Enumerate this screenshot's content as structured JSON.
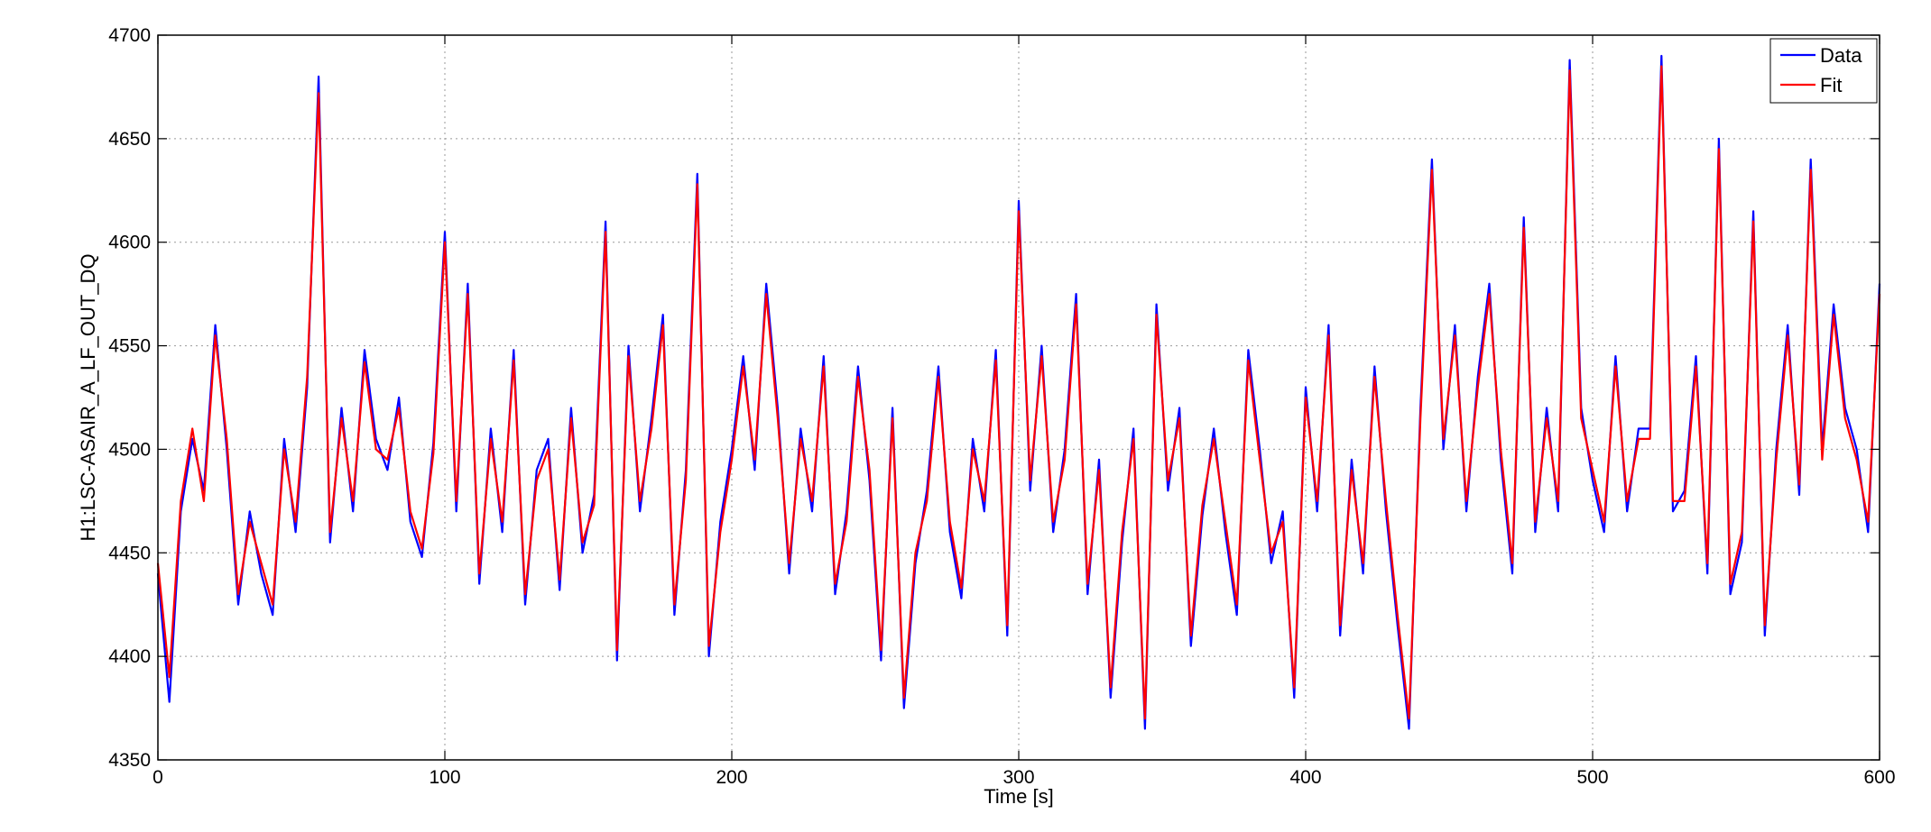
{
  "chart_data": {
    "type": "line",
    "title": "",
    "xlabel": "Time [s]",
    "ylabel": "H1:LSC-ASAIR_A_LF_OUT_DQ",
    "xlim": [
      0,
      600
    ],
    "ylim": [
      4350,
      4700
    ],
    "x_ticks": [
      0,
      100,
      200,
      300,
      400,
      500,
      600
    ],
    "y_ticks": [
      4350,
      4400,
      4450,
      4500,
      4550,
      4600,
      4650,
      4700
    ],
    "grid": true,
    "legend_position": "top-right",
    "sample_interval_s": 4,
    "series": [
      {
        "name": "Data",
        "color": "#0000ff",
        "x": [
          0,
          4,
          8,
          12,
          16,
          20,
          24,
          28,
          32,
          36,
          40,
          44,
          48,
          52,
          56,
          60,
          64,
          68,
          72,
          76,
          80,
          84,
          88,
          92,
          96,
          100,
          104,
          108,
          112,
          116,
          120,
          124,
          128,
          132,
          136,
          140,
          144,
          148,
          152,
          156,
          160,
          164,
          168,
          172,
          176,
          180,
          184,
          188,
          192,
          196,
          200,
          204,
          208,
          212,
          216,
          220,
          224,
          228,
          232,
          236,
          240,
          244,
          248,
          252,
          256,
          260,
          264,
          268,
          272,
          276,
          280,
          284,
          288,
          292,
          296,
          300,
          304,
          308,
          312,
          316,
          320,
          324,
          328,
          332,
          336,
          340,
          344,
          348,
          352,
          356,
          360,
          364,
          368,
          372,
          376,
          380,
          384,
          388,
          392,
          396,
          400,
          404,
          408,
          412,
          416,
          420,
          424,
          428,
          432,
          436,
          440,
          444,
          448,
          452,
          456,
          460,
          464,
          468,
          472,
          476,
          480,
          484,
          488,
          492,
          496,
          500,
          504,
          508,
          512,
          516,
          520,
          524,
          528,
          532,
          536,
          540,
          544,
          548,
          552,
          556,
          560,
          564,
          568,
          572,
          576,
          580,
          584,
          588,
          592,
          596,
          600
        ],
        "values": [
          4440,
          4378,
          4470,
          4505,
          4480,
          4560,
          4500,
          4425,
          4470,
          4440,
          4420,
          4505,
          4460,
          4530,
          4680,
          4455,
          4520,
          4470,
          4548,
          4505,
          4490,
          4525,
          4465,
          4448,
          4503,
          4605,
          4470,
          4580,
          4435,
          4510,
          4460,
          4548,
          4425,
          4490,
          4505,
          4432,
          4520,
          4450,
          4478,
          4610,
          4398,
          4550,
          4470,
          4515,
          4565,
          4420,
          4490,
          4633,
          4400,
          4465,
          4500,
          4545,
          4490,
          4580,
          4520,
          4440,
          4510,
          4470,
          4545,
          4430,
          4470,
          4540,
          4485,
          4398,
          4520,
          4375,
          4445,
          4480,
          4540,
          4460,
          4428,
          4505,
          4470,
          4548,
          4410,
          4620,
          4480,
          4550,
          4460,
          4500,
          4575,
          4430,
          4495,
          4380,
          4455,
          4510,
          4365,
          4570,
          4480,
          4520,
          4405,
          4468,
          4510,
          4460,
          4420,
          4548,
          4500,
          4445,
          4470,
          4380,
          4530,
          4470,
          4560,
          4410,
          4495,
          4440,
          4540,
          4470,
          4415,
          4365,
          4520,
          4640,
          4500,
          4560,
          4470,
          4535,
          4580,
          4495,
          4440,
          4612,
          4460,
          4520,
          4470,
          4688,
          4520,
          4485,
          4460,
          4545,
          4470,
          4510,
          4510,
          4690,
          4470,
          4480,
          4545,
          4440,
          4650,
          4430,
          4455,
          4615,
          4410,
          4500,
          4560,
          4478,
          4640,
          4500,
          4570,
          4520,
          4500,
          4460,
          4580
        ]
      },
      {
        "name": "Fit",
        "color": "#ff0000",
        "x": [
          0,
          4,
          8,
          12,
          16,
          20,
          24,
          28,
          32,
          36,
          40,
          44,
          48,
          52,
          56,
          60,
          64,
          68,
          72,
          76,
          80,
          84,
          88,
          92,
          96,
          100,
          104,
          108,
          112,
          116,
          120,
          124,
          128,
          132,
          136,
          140,
          144,
          148,
          152,
          156,
          160,
          164,
          168,
          172,
          176,
          180,
          184,
          188,
          192,
          196,
          200,
          204,
          208,
          212,
          216,
          220,
          224,
          228,
          232,
          236,
          240,
          244,
          248,
          252,
          256,
          260,
          264,
          268,
          272,
          276,
          280,
          284,
          288,
          292,
          296,
          300,
          304,
          308,
          312,
          316,
          320,
          324,
          328,
          332,
          336,
          340,
          344,
          348,
          352,
          356,
          360,
          364,
          368,
          372,
          376,
          380,
          384,
          388,
          392,
          396,
          400,
          404,
          408,
          412,
          416,
          420,
          424,
          428,
          432,
          436,
          440,
          444,
          448,
          452,
          456,
          460,
          464,
          468,
          472,
          476,
          480,
          484,
          488,
          492,
          496,
          500,
          504,
          508,
          512,
          516,
          520,
          524,
          528,
          532,
          536,
          540,
          544,
          548,
          552,
          556,
          560,
          564,
          568,
          572,
          576,
          580,
          584,
          588,
          592,
          596,
          600
        ],
        "values": [
          4445,
          4390,
          4475,
          4510,
          4475,
          4555,
          4505,
          4430,
          4465,
          4445,
          4425,
          4500,
          4465,
          4535,
          4672,
          4460,
          4515,
          4475,
          4542,
          4500,
          4495,
          4520,
          4470,
          4452,
          4498,
          4600,
          4475,
          4575,
          4440,
          4505,
          4465,
          4543,
          4430,
          4485,
          4500,
          4437,
          4515,
          4455,
          4473,
          4605,
          4403,
          4545,
          4475,
          4510,
          4560,
          4425,
          4485,
          4628,
          4405,
          4460,
          4495,
          4540,
          4495,
          4575,
          4515,
          4445,
          4505,
          4475,
          4540,
          4435,
          4465,
          4535,
          4490,
          4403,
          4515,
          4380,
          4450,
          4475,
          4535,
          4465,
          4433,
          4500,
          4475,
          4543,
          4415,
          4615,
          4485,
          4545,
          4465,
          4495,
          4570,
          4435,
          4490,
          4385,
          4460,
          4505,
          4370,
          4565,
          4485,
          4515,
          4410,
          4473,
          4505,
          4465,
          4425,
          4543,
          4495,
          4450,
          4465,
          4385,
          4525,
          4475,
          4555,
          4415,
          4490,
          4445,
          4535,
          4475,
          4420,
          4370,
          4515,
          4635,
          4505,
          4555,
          4475,
          4530,
          4575,
          4500,
          4445,
          4607,
          4465,
          4515,
          4475,
          4683,
          4515,
          4490,
          4465,
          4540,
          4475,
          4505,
          4505,
          4685,
          4475,
          4475,
          4540,
          4445,
          4645,
          4435,
          4460,
          4610,
          4415,
          4495,
          4555,
          4483,
          4635,
          4495,
          4565,
          4515,
          4495,
          4465,
          4575
        ]
      }
    ]
  }
}
